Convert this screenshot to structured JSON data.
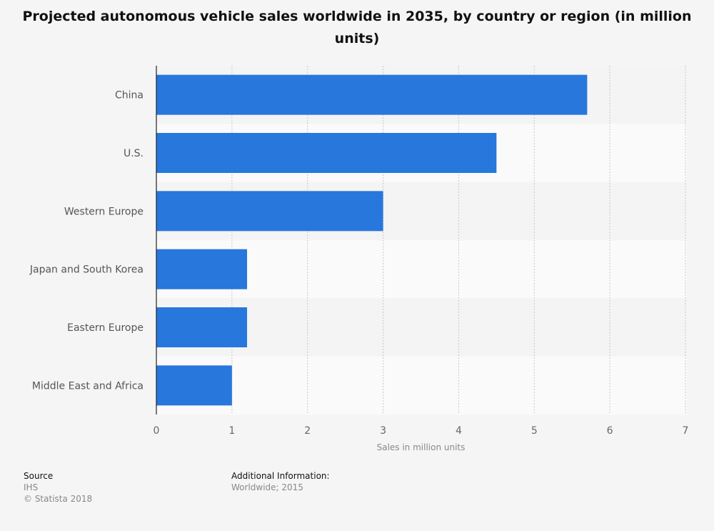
{
  "chart_data": {
    "type": "bar",
    "orientation": "horizontal",
    "title": "Projected autonomous vehicle sales worldwide in 2035, by country or region (in million units)",
    "categories": [
      "China",
      "U.S.",
      "Western Europe",
      "Japan and South Korea",
      "Eastern Europe",
      "Middle East and Africa"
    ],
    "values": [
      5.7,
      4.5,
      3,
      1.2,
      1.2,
      1
    ],
    "xlabel": "Sales in million units",
    "ylabel": "",
    "xlim": [
      0,
      7
    ],
    "xticks": [
      "0",
      "1",
      "2",
      "3",
      "4",
      "5",
      "6",
      "7"
    ],
    "grid": true,
    "bar_color": "#2777dd"
  },
  "footer": {
    "source_label": "Source",
    "source": "IHS",
    "copyright": "© Statista 2018",
    "additional_label": "Additional Information:",
    "additional": "Worldwide; 2015"
  }
}
